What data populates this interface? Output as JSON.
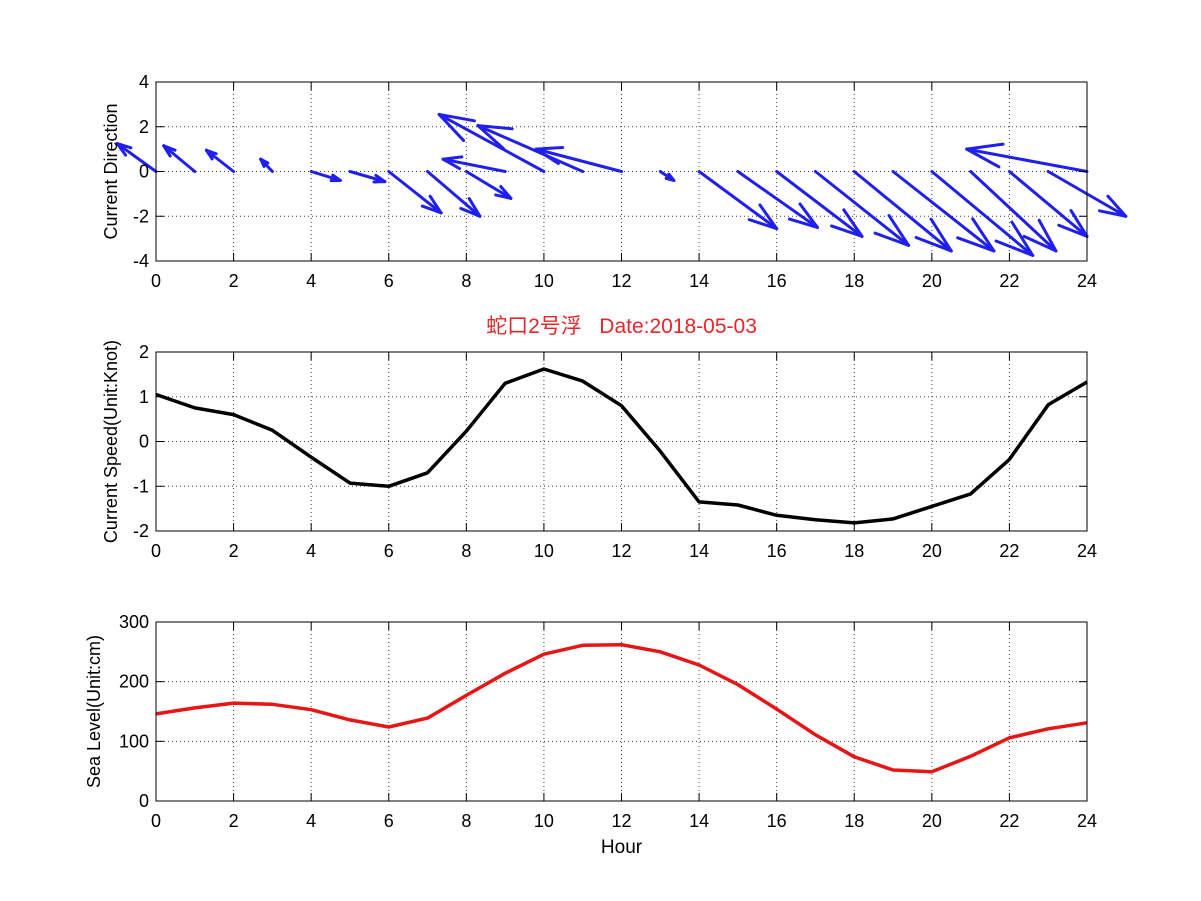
{
  "figure": {
    "title": "蛇口2号浮   Date:2018-05-03",
    "title_color": "#e8262a",
    "xlabel": "Hour",
    "x_ticks": [
      0,
      2,
      4,
      6,
      8,
      10,
      12,
      14,
      16,
      18,
      20,
      22,
      24
    ],
    "x_range": [
      0,
      24
    ]
  },
  "chart_data": [
    {
      "type": "quiver",
      "ylabel": "Current Direction",
      "ylim": [
        -4,
        4
      ],
      "y_ticks": [
        -4,
        -2,
        0,
        2,
        4
      ],
      "grid": true,
      "color": "#1f1ff0",
      "hours": [
        0,
        1,
        2,
        3,
        4,
        5,
        6,
        7,
        8,
        9,
        10,
        11,
        12,
        13,
        14,
        15,
        16,
        17,
        18,
        19,
        20,
        21,
        22,
        23,
        24
      ],
      "u": [
        -1.0,
        -0.8,
        -0.7,
        -0.3,
        0.75,
        0.9,
        1.35,
        1.35,
        1.15,
        -1.6,
        -2.7,
        -2.7,
        -2.2,
        0.35,
        2.0,
        2.05,
        2.2,
        2.4,
        2.5,
        2.6,
        2.6,
        2.2,
        2.0,
        2.0,
        -3.1
      ],
      "v": [
        1.25,
        1.15,
        0.95,
        0.55,
        -0.4,
        -0.45,
        -1.85,
        -2.0,
        -1.2,
        0.55,
        2.55,
        2.05,
        1.0,
        -0.4,
        -2.55,
        -2.5,
        -2.9,
        -3.3,
        -3.55,
        -3.55,
        -3.75,
        -3.55,
        -2.9,
        -2.0,
        1.0
      ]
    },
    {
      "type": "line",
      "ylabel": "Current Speed(Unit:Knot)",
      "ylim": [
        -2,
        2
      ],
      "y_ticks": [
        -2,
        -1,
        0,
        1,
        2
      ],
      "grid": true,
      "color": "#000000",
      "x": [
        0,
        1,
        2,
        3,
        4,
        5,
        6,
        7,
        8,
        9,
        10,
        11,
        12,
        13,
        14,
        15,
        16,
        17,
        18,
        19,
        20,
        21,
        22,
        23,
        24
      ],
      "values": [
        1.05,
        0.75,
        0.6,
        0.25,
        -0.35,
        -0.93,
        -1.0,
        -0.7,
        0.23,
        1.3,
        1.62,
        1.35,
        0.8,
        -0.22,
        -1.35,
        -1.42,
        -1.65,
        -1.75,
        -1.82,
        -1.73,
        -1.45,
        -1.17,
        -0.4,
        0.82,
        1.33
      ]
    },
    {
      "type": "line",
      "ylabel": "Sea Level(Unit:cm)",
      "ylim": [
        0,
        300
      ],
      "y_ticks": [
        0,
        100,
        200,
        300
      ],
      "grid": true,
      "color": "#e81515",
      "x": [
        0,
        1,
        2,
        3,
        4,
        5,
        6,
        7,
        8,
        9,
        10,
        11,
        12,
        13,
        14,
        15,
        16,
        17,
        18,
        19,
        20,
        21,
        22,
        23,
        24
      ],
      "values": [
        146,
        156,
        164,
        162,
        153,
        136,
        124,
        139,
        177,
        214,
        246,
        261,
        262,
        250,
        228,
        195,
        154,
        111,
        74,
        52,
        49,
        75,
        106,
        121,
        131
      ]
    }
  ]
}
